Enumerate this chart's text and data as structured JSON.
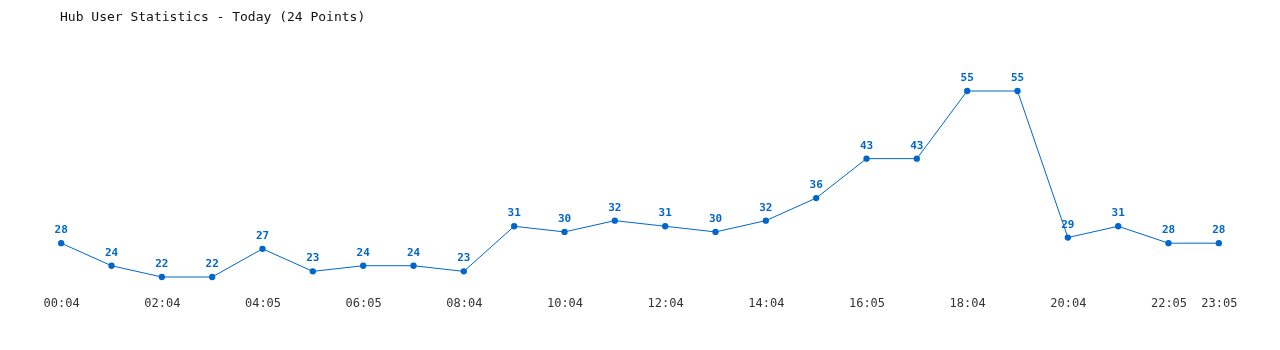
{
  "chart_data": {
    "type": "line",
    "title": "Hub User Statistics - Today (24 Points)",
    "categories": [
      "00:04",
      null,
      "02:04",
      null,
      "04:05",
      null,
      "06:05",
      null,
      "08:04",
      null,
      "10:04",
      null,
      "12:04",
      null,
      "14:04",
      null,
      "16:05",
      null,
      "18:04",
      null,
      "20:04",
      null,
      "22:05",
      "23:05"
    ],
    "series": [
      {
        "color": "#0066cc",
        "values": [
          28,
          24,
          22,
          22,
          27,
          23,
          24,
          24,
          23,
          31,
          30,
          32,
          31,
          30,
          32,
          36,
          43,
          43,
          55,
          55,
          29,
          31,
          28,
          28
        ]
      }
    ],
    "data_labels": true,
    "marker": "circle",
    "line_style": "solid"
  }
}
